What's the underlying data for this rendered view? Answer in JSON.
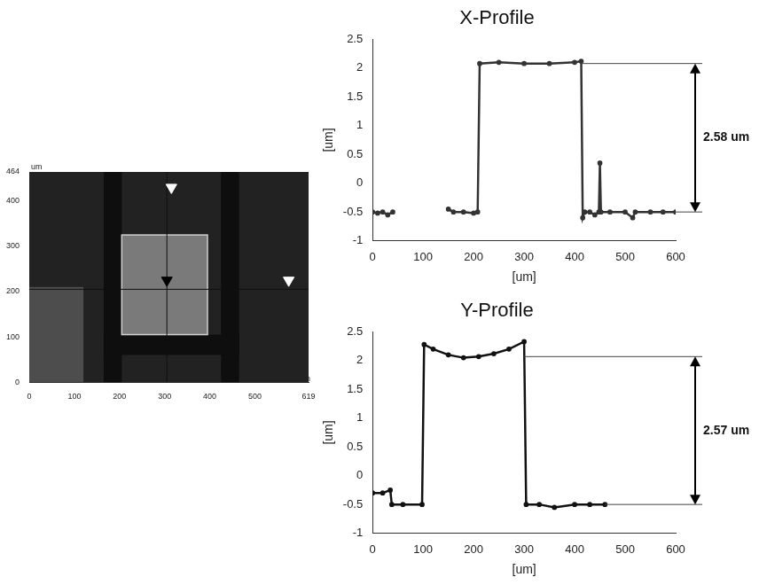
{
  "chart_data": [
    {
      "type": "image",
      "xlabel": "um",
      "ylabel": "um",
      "xlim": [
        0,
        619
      ],
      "ylim": [
        0,
        464
      ],
      "xticks": [
        0,
        100,
        200,
        300,
        400,
        500,
        619
      ],
      "yticks": [
        0,
        100,
        200,
        300,
        400,
        464
      ],
      "grid": false,
      "regions": [
        {
          "x": [
            0,
            619
          ],
          "y": [
            0,
            464
          ],
          "color": "#222222"
        },
        {
          "x": [
            0,
            120
          ],
          "y": [
            0,
            210
          ],
          "color": "#4d4d4d"
        },
        {
          "x": [
            165,
            205
          ],
          "y": [
            0,
            464
          ],
          "color": "#0e0e0e"
        },
        {
          "x": [
            425,
            465
          ],
          "y": [
            0,
            464
          ],
          "color": "#0e0e0e"
        },
        {
          "x": [
            165,
            465
          ],
          "y": [
            60,
            105
          ],
          "color": "#0e0e0e"
        },
        {
          "x": [
            205,
            395
          ],
          "y": [
            105,
            325
          ],
          "color": "#7a7a7a"
        }
      ],
      "profile_lines": {
        "x": 305,
        "y": 205
      },
      "markers": [
        {
          "x": 315,
          "y": 430,
          "color": "#ffffff"
        },
        {
          "x": 305,
          "y": 225,
          "color": "#000000"
        },
        {
          "x": 575,
          "y": 225,
          "color": "#ffffff"
        }
      ],
      "marker": "triangle-down"
    },
    {
      "type": "line",
      "title": "X-Profile",
      "xlabel": "[um]",
      "ylabel": "[um]",
      "xlim": [
        0,
        600
      ],
      "ylim": [
        -1,
        2.5
      ],
      "xticks": [
        0,
        100,
        200,
        300,
        400,
        500,
        600
      ],
      "yticks": [
        -1,
        -0.5,
        0,
        0.5,
        1,
        1.5,
        2,
        2.5
      ],
      "grid": false,
      "color": "#333333",
      "marker": "circle",
      "x": [
        0,
        10,
        20,
        30,
        40,
        90,
        150,
        160,
        180,
        200,
        208,
        212,
        250,
        300,
        350,
        400,
        413,
        416,
        420,
        430,
        440,
        448,
        450,
        452,
        470,
        500,
        515,
        520,
        550,
        575,
        600
      ],
      "values": [
        -0.5,
        -0.52,
        -0.5,
        -0.55,
        -0.5,
        null,
        -0.45,
        -0.5,
        -0.5,
        -0.52,
        -0.5,
        2.08,
        2.1,
        2.08,
        2.08,
        2.1,
        2.12,
        -0.6,
        -0.5,
        -0.5,
        -0.55,
        -0.5,
        0.35,
        -0.5,
        -0.5,
        -0.5,
        -0.6,
        -0.5,
        -0.5,
        -0.5,
        -0.5
      ],
      "annotation": {
        "text": "2.58 um",
        "y": [
          -0.5,
          2.08
        ]
      }
    },
    {
      "type": "line",
      "title": "Y-Profile",
      "xlabel": "[um]",
      "ylabel": "[um]",
      "xlim": [
        0,
        600
      ],
      "ylim": [
        -1,
        2.5
      ],
      "xticks": [
        0,
        100,
        200,
        300,
        400,
        500,
        600
      ],
      "yticks": [
        -1,
        -0.5,
        0,
        0.5,
        1,
        1.5,
        2,
        2.5
      ],
      "grid": false,
      "color": "#111111",
      "marker": "circle",
      "x": [
        0,
        20,
        35,
        38,
        60,
        98,
        102,
        120,
        150,
        180,
        210,
        240,
        270,
        300,
        304,
        330,
        360,
        400,
        430,
        460
      ],
      "values": [
        -0.3,
        -0.3,
        -0.25,
        -0.5,
        -0.5,
        -0.5,
        2.28,
        2.2,
        2.1,
        2.05,
        2.07,
        2.12,
        2.2,
        2.33,
        -0.5,
        -0.5,
        -0.55,
        -0.5,
        -0.5,
        -0.5
      ],
      "annotation": {
        "text": "2.57 um",
        "y": [
          -0.5,
          2.07
        ]
      }
    }
  ]
}
